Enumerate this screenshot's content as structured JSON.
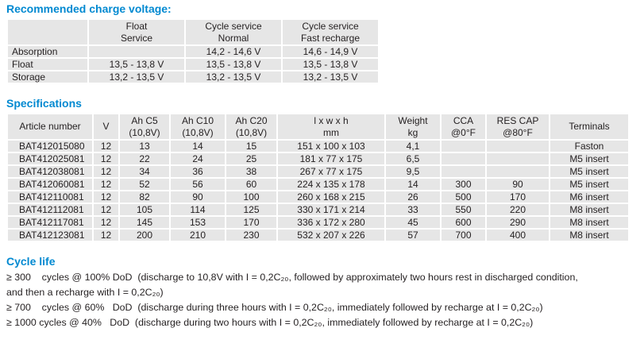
{
  "colors": {
    "heading_blue": "#0089d1",
    "cell_gray": "#e6e6e6",
    "text": "#231f20"
  },
  "charge_voltage": {
    "heading": "Recommended charge voltage:",
    "columns": [
      "",
      "Float\nService",
      "Cycle service\nNormal",
      "Cycle service\nFast recharge"
    ],
    "rows": [
      [
        "Absorption",
        "",
        "14,2 - 14,6 V",
        "14,6 - 14,9 V"
      ],
      [
        "Float",
        "13,5 - 13,8 V",
        "13,5 - 13,8 V",
        "13,5 - 13,8 V"
      ],
      [
        "Storage",
        "13,2 - 13,5 V",
        "13,2 - 13,5 V",
        "13,2 - 13,5 V"
      ]
    ]
  },
  "specifications": {
    "heading": "Specifications",
    "columns": [
      "Article number",
      "V",
      "Ah C5\n(10,8V)",
      "Ah C10\n(10,8V)",
      "Ah C20\n(10,8V)",
      "l x w x h\nmm",
      "Weight\nkg",
      "CCA\n@0°F",
      "RES CAP\n@80°F",
      "Terminals"
    ],
    "rows": [
      [
        "BAT412015080",
        "12",
        "13",
        "14",
        "15",
        "151 x 100 x 103",
        "4,1",
        "",
        "",
        "Faston"
      ],
      [
        "BAT412025081",
        "12",
        "22",
        "24",
        "25",
        "181 x 77 x 175",
        "6,5",
        "",
        "",
        "M5 insert"
      ],
      [
        "BAT412038081",
        "12",
        "34",
        "36",
        "38",
        "267 x 77 x 175",
        "9,5",
        "",
        "",
        "M5 insert"
      ],
      [
        "BAT412060081",
        "12",
        "52",
        "56",
        "60",
        "224 x 135 x 178",
        "14",
        "300",
        "90",
        "M5 insert"
      ],
      [
        "BAT412110081",
        "12",
        "82",
        "90",
        "100",
        "260 x 168 x 215",
        "26",
        "500",
        "170",
        "M6 insert"
      ],
      [
        "BAT412112081",
        "12",
        "105",
        "114",
        "125",
        "330 x 171 x 214",
        "33",
        "550",
        "220",
        "M8 insert"
      ],
      [
        "BAT412117081",
        "12",
        "145",
        "153",
        "170",
        "336 x 172 x 280",
        "45",
        "600",
        "290",
        "M8 insert"
      ],
      [
        "BAT412123081",
        "12",
        "200",
        "210",
        "230",
        "532 x 207 x 226",
        "57",
        "700",
        "400",
        "M8 insert"
      ]
    ]
  },
  "cycle_life": {
    "heading": "Cycle life",
    "lines": [
      "≥ 300    cycles @ 100% DoD  (discharge to 10,8V with I = 0,2C₂₀, followed by approximately two hours rest in discharged condition,",
      "and then a recharge with I = 0,2C₂₀)",
      "≥ 700    cycles @ 60%   DoD  (discharge during three hours with I = 0,2C₂₀, immediately followed by recharge at I = 0,2C₂₀)",
      "≥ 1000 cycles @ 40%   DoD  (discharge during two hours with I = 0,2C₂₀, immediately followed by recharge at I = 0,2C₂₀)"
    ]
  }
}
